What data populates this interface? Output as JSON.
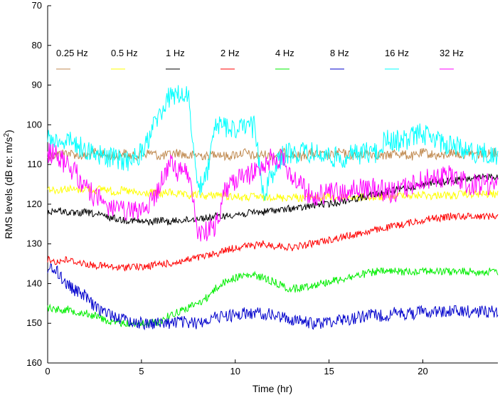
{
  "chart_data": {
    "type": "line",
    "title": "",
    "xlabel": "Time  (hr)",
    "ylabel_main": "RMS levels (dB re: m/s",
    "ylabel_sup": "2",
    "ylabel_tail": ")",
    "xlim": [
      0,
      24
    ],
    "ylim": [
      70,
      160
    ],
    "y_inverted": true,
    "grid": false,
    "legend_position": "top",
    "x_ticks": [
      0,
      5,
      10,
      15,
      20
    ],
    "y_ticks": [
      70,
      80,
      90,
      100,
      110,
      120,
      130,
      140,
      150,
      160
    ],
    "x": [
      0,
      0.5,
      1,
      1.5,
      2,
      2.5,
      3,
      3.5,
      4,
      4.5,
      5,
      5.5,
      6,
      6.5,
      7,
      7.5,
      8,
      8.5,
      9,
      9.5,
      10,
      10.5,
      11,
      11.5,
      12,
      12.5,
      13,
      13.5,
      14,
      14.5,
      15,
      15.5,
      16,
      16.5,
      17,
      17.5,
      18,
      18.5,
      19,
      19.5,
      20,
      20.5,
      21,
      21.5,
      22,
      22.5,
      23,
      23.5,
      24
    ],
    "series": [
      {
        "name": "0.25 Hz",
        "color": "#c08a50",
        "values": [
          108,
          107.5,
          107,
          107.5,
          108,
          107,
          107.5,
          108,
          107,
          108,
          107.5,
          107,
          108,
          107.5,
          107,
          108,
          107.5,
          108,
          107,
          108,
          107.5,
          107,
          108,
          107.5,
          108,
          107,
          107.5,
          108,
          107,
          107.5,
          108,
          107,
          107.5,
          108,
          107,
          107.5,
          108,
          107,
          107.5,
          108,
          107,
          107.5,
          108,
          107,
          107.5,
          107,
          107.5,
          107,
          107
        ]
      },
      {
        "name": "0.5 Hz",
        "color": "#ffff00",
        "values": [
          116,
          116.5,
          116,
          116.5,
          116,
          116.5,
          116,
          117,
          116.5,
          117,
          117.5,
          117,
          117.5,
          117,
          117.5,
          118,
          117.5,
          118,
          117.5,
          118,
          118,
          118.5,
          118,
          118.5,
          118,
          118.5,
          118,
          118.5,
          118,
          118.5,
          118,
          118.5,
          118,
          118.5,
          118,
          118.5,
          118,
          118,
          117.5,
          118,
          117.5,
          118,
          117.5,
          118,
          117.5,
          117.5,
          117.5,
          117.5,
          117.5
        ]
      },
      {
        "name": "1 Hz",
        "color": "#000000",
        "values": [
          122,
          121.5,
          122,
          122.5,
          122,
          122.5,
          123,
          123.5,
          124,
          124,
          124.5,
          124.5,
          124,
          124.5,
          124,
          124,
          123.5,
          123.5,
          123,
          123,
          122.5,
          122.5,
          122,
          122,
          121.5,
          121.5,
          121,
          121,
          120.5,
          120,
          120,
          119.5,
          119,
          118.5,
          118,
          117.5,
          117,
          116.5,
          116,
          115.5,
          115,
          114.5,
          114.5,
          114,
          114,
          113.5,
          113.5,
          113,
          113
        ]
      },
      {
        "name": "2 Hz",
        "color": "#ff0000",
        "values": [
          134,
          134.5,
          134,
          134.5,
          135,
          135.5,
          135.5,
          136,
          136,
          135.5,
          136,
          135.5,
          135,
          135,
          134.5,
          134,
          133.5,
          133,
          132.5,
          131.5,
          131,
          130.5,
          130.5,
          130,
          130.5,
          130.5,
          131,
          130.5,
          130,
          129.5,
          129,
          128.5,
          128,
          127.5,
          127,
          126.5,
          126,
          125.5,
          125,
          124.5,
          124,
          123.5,
          123.5,
          123,
          123,
          123,
          123,
          123,
          123
        ]
      },
      {
        "name": "4 Hz",
        "color": "#00ee00",
        "values": [
          146,
          146.5,
          146.5,
          147,
          147.5,
          148,
          149,
          150,
          150,
          150,
          150,
          150,
          149.5,
          148,
          147,
          146,
          145,
          143.5,
          141,
          139.5,
          138.5,
          138,
          138,
          138.5,
          139.5,
          140.5,
          141.5,
          141,
          140.5,
          140,
          139.5,
          139,
          138.5,
          138,
          137.5,
          137,
          137,
          137,
          137,
          137,
          136.5,
          137,
          137,
          137,
          137,
          137,
          137,
          137,
          137
        ]
      },
      {
        "name": "8 Hz",
        "color": "#0000cc",
        "values": [
          136,
          137,
          140,
          142,
          143,
          146,
          147,
          148,
          149,
          149.5,
          150,
          150,
          150,
          150,
          149.5,
          150,
          150,
          149,
          148.5,
          148,
          148,
          147.5,
          147.5,
          147.5,
          148,
          148.5,
          149,
          149.5,
          150,
          150,
          149.5,
          149,
          149,
          148.5,
          148,
          148,
          148,
          147.5,
          147.5,
          147.5,
          147,
          147,
          147,
          147,
          147,
          147,
          147,
          147,
          147
        ]
      },
      {
        "name": "16 Hz",
        "color": "#00ffff",
        "values": [
          104,
          103.5,
          104,
          105,
          106,
          107,
          108,
          108.5,
          109,
          109,
          107,
          102,
          97,
          93,
          92.5,
          92.5,
          117,
          112,
          100,
          100.5,
          101,
          101,
          100.5,
          117,
          112,
          108,
          107,
          107,
          107,
          107.5,
          108,
          108.5,
          108,
          107.5,
          107,
          107,
          104,
          104,
          104,
          103,
          102,
          103.5,
          104.5,
          105,
          106,
          106.5,
          107,
          107.5,
          108
        ]
      },
      {
        "name": "32 Hz",
        "color": "#ff00ff",
        "values": [
          107,
          108,
          110,
          112,
          116,
          118,
          120,
          121,
          122,
          122,
          121,
          120,
          115,
          110,
          112,
          112,
          127,
          127,
          125,
          116,
          114,
          113,
          112,
          110,
          108,
          109,
          113,
          115,
          118,
          117.5,
          117,
          117,
          117,
          116,
          116.5,
          116,
          117,
          117,
          116,
          115,
          114,
          113.5,
          113,
          113,
          114,
          115,
          115,
          115,
          115
        ]
      }
    ]
  }
}
